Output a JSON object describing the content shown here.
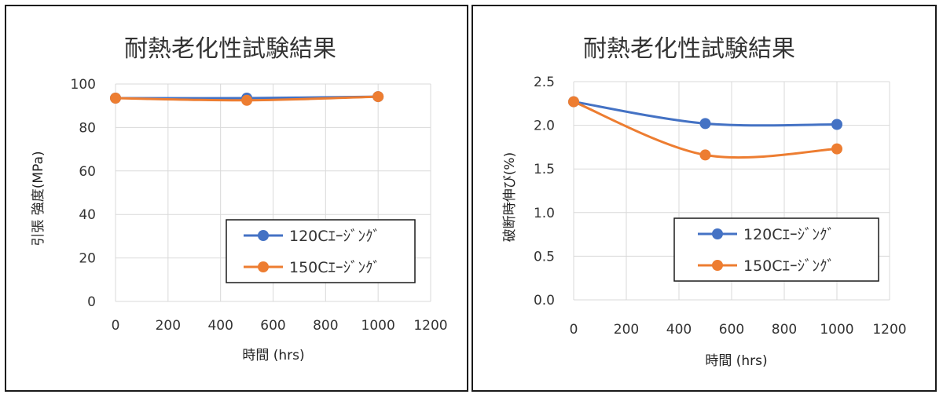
{
  "colors": {
    "series1": "#4472C4",
    "series2": "#ED7D31",
    "grid": "#d9d9d9"
  },
  "chart_data": [
    {
      "type": "line",
      "title": "耐熱老化性試験結果",
      "xlabel": "時間 (hrs)",
      "ylabel": "引張 強度(MPa)",
      "xlim": [
        0,
        1200
      ],
      "ylim": [
        0,
        100
      ],
      "xticks": [
        "0",
        "200",
        "400",
        "600",
        "800",
        "1000",
        "1200"
      ],
      "yticks": [
        "0",
        "20",
        "40",
        "60",
        "80",
        "100"
      ],
      "grid": true,
      "legend": "bottom-right",
      "series": [
        {
          "name": "120Cｴｰｼﾞﾝｸﾞ",
          "x": [
            0,
            500,
            1000
          ],
          "y": [
            93.5,
            93.5,
            94.2
          ]
        },
        {
          "name": "150Cｴｰｼﾞﾝｸﾞ",
          "x": [
            0,
            500,
            1000
          ],
          "y": [
            93.5,
            92.5,
            94.2
          ]
        }
      ]
    },
    {
      "type": "line",
      "title": "耐熱老化性試験結果",
      "xlabel": "時間 (hrs)",
      "ylabel": "破断時伸び(%)",
      "xlim": [
        0,
        1200
      ],
      "ylim": [
        0,
        2.5
      ],
      "xticks": [
        "0",
        "200",
        "400",
        "600",
        "800",
        "1000",
        "1200"
      ],
      "yticks": [
        "0.0",
        "0.5",
        "1.0",
        "1.5",
        "2.0",
        "2.5"
      ],
      "grid": true,
      "legend": "bottom-right",
      "series": [
        {
          "name": "120Cｴｰｼﾞﾝｸﾞ",
          "x": [
            0,
            500,
            1000
          ],
          "y": [
            2.27,
            2.02,
            2.01
          ]
        },
        {
          "name": "150Cｴｰｼﾞﾝｸﾞ",
          "x": [
            0,
            500,
            1000
          ],
          "y": [
            2.27,
            1.66,
            1.73
          ]
        }
      ]
    }
  ]
}
